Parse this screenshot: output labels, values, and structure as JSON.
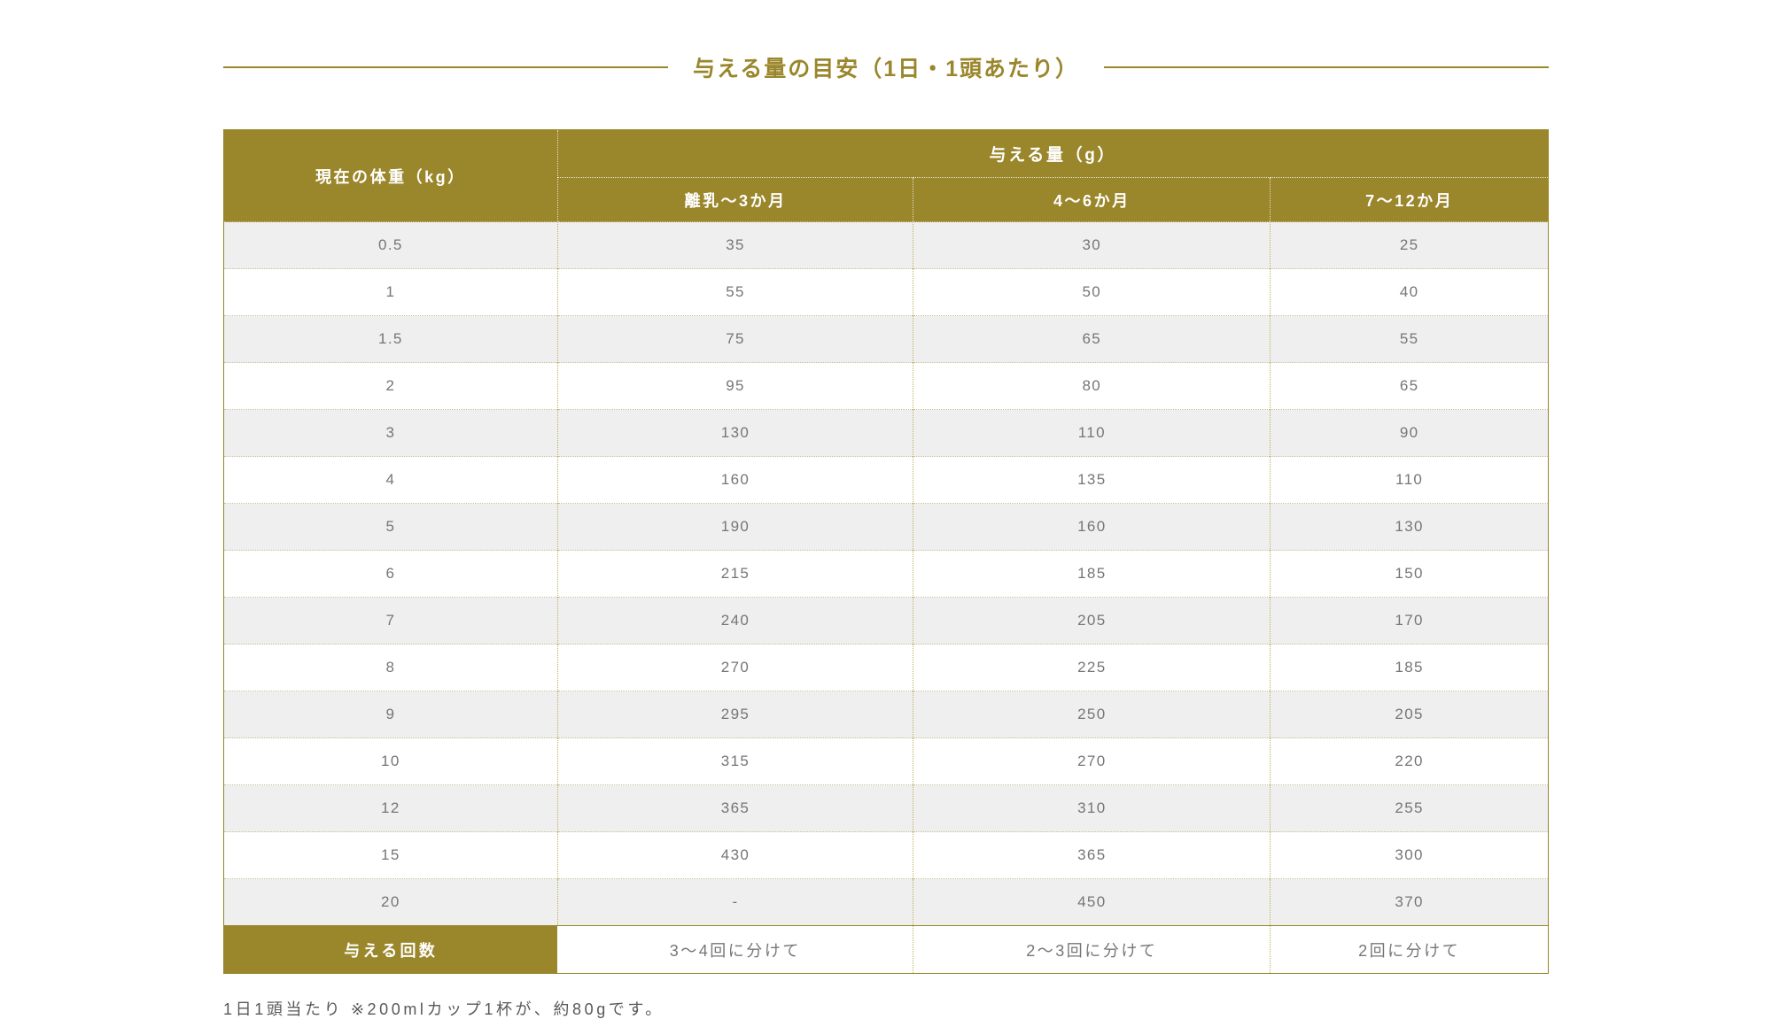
{
  "page": {
    "title": "与える量の目安（1日・1頭あたり）",
    "footnote": "1日1頭当たり ※200mlカップ1杯が、約80gです。"
  },
  "table": {
    "weight_header": "現在の体重（kg）",
    "amount_header": "与える量（g）",
    "age_columns": [
      "離乳〜3か月",
      "4〜6か月",
      "7〜12か月"
    ],
    "rows": [
      {
        "weight": "0.5",
        "values": [
          "35",
          "30",
          "25"
        ]
      },
      {
        "weight": "1",
        "values": [
          "55",
          "50",
          "40"
        ]
      },
      {
        "weight": "1.5",
        "values": [
          "75",
          "65",
          "55"
        ]
      },
      {
        "weight": "2",
        "values": [
          "95",
          "80",
          "65"
        ]
      },
      {
        "weight": "3",
        "values": [
          "130",
          "110",
          "90"
        ]
      },
      {
        "weight": "4",
        "values": [
          "160",
          "135",
          "110"
        ]
      },
      {
        "weight": "5",
        "values": [
          "190",
          "160",
          "130"
        ]
      },
      {
        "weight": "6",
        "values": [
          "215",
          "185",
          "150"
        ]
      },
      {
        "weight": "7",
        "values": [
          "240",
          "205",
          "170"
        ]
      },
      {
        "weight": "8",
        "values": [
          "270",
          "225",
          "185"
        ]
      },
      {
        "weight": "9",
        "values": [
          "295",
          "250",
          "205"
        ]
      },
      {
        "weight": "10",
        "values": [
          "315",
          "270",
          "220"
        ]
      },
      {
        "weight": "12",
        "values": [
          "365",
          "310",
          "255"
        ]
      },
      {
        "weight": "15",
        "values": [
          "430",
          "365",
          "300"
        ]
      },
      {
        "weight": "20",
        "values": [
          "-",
          "450",
          "370"
        ]
      }
    ],
    "footer": {
      "label": "与える回数",
      "values": [
        "3〜4回に分けて",
        "2〜3回に分けて",
        "2回に分けて"
      ]
    }
  },
  "colors": {
    "accent": "#9a862b",
    "row_alt": "#efefef",
    "cell_text": "#767676"
  }
}
